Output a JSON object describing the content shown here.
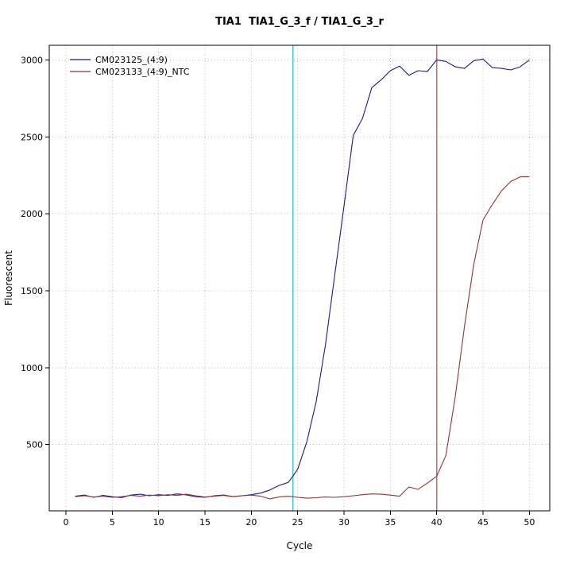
{
  "page": {
    "background": "#ffffff"
  },
  "chart_data": {
    "type": "line",
    "title": "TIA1  TIA1_G_3_f / TIA1_G_3_r",
    "xlabel": "Cycle",
    "ylabel": "Fluorescent",
    "xlim": [
      -1.8,
      52.2
    ],
    "ylim": [
      70,
      3095
    ],
    "x_ticks": [
      0,
      5,
      10,
      15,
      20,
      25,
      30,
      35,
      40,
      45,
      50
    ],
    "y_ticks": [
      500,
      1000,
      1500,
      2000,
      2500,
      3000
    ],
    "grid": true,
    "grid_color": "#bdbdbd",
    "axis_color": "#000000",
    "legend_position": "top-left",
    "series": [
      {
        "name": "CM023125_(4:9)",
        "color": "#1a1a8c",
        "x": [
          1,
          2,
          3,
          4,
          5,
          6,
          7,
          8,
          9,
          10,
          11,
          12,
          13,
          14,
          15,
          16,
          17,
          18,
          19,
          20,
          21,
          22,
          23,
          24,
          25,
          26,
          27,
          28,
          29,
          30,
          31,
          32,
          33,
          34,
          35,
          36,
          37,
          38,
          39,
          40,
          41,
          42,
          43,
          44,
          45,
          46,
          47,
          48,
          49,
          50
        ],
        "values": [
          165,
          172,
          158,
          170,
          162,
          156,
          172,
          178,
          168,
          175,
          170,
          180,
          174,
          162,
          158,
          168,
          173,
          163,
          168,
          175,
          185,
          205,
          235,
          255,
          340,
          520,
          780,
          1150,
          1600,
          2050,
          2510,
          2620,
          2820,
          2870,
          2930,
          2960,
          2900,
          2930,
          2925,
          3000,
          2990,
          2955,
          2945,
          2995,
          3005,
          2950,
          2945,
          2935,
          2955,
          3000
        ]
      },
      {
        "name": "CM023133_(4:9)_NTC",
        "color": "#963232",
        "x": [
          1,
          2,
          3,
          4,
          5,
          6,
          7,
          8,
          9,
          10,
          11,
          12,
          13,
          14,
          15,
          16,
          17,
          18,
          19,
          20,
          21,
          22,
          23,
          24,
          25,
          26,
          27,
          28,
          29,
          30,
          31,
          32,
          33,
          34,
          35,
          36,
          37,
          38,
          39,
          40,
          41,
          42,
          43,
          44,
          45,
          46,
          47,
          48,
          49,
          50
        ],
        "values": [
          162,
          168,
          160,
          165,
          158,
          162,
          170,
          165,
          172,
          168,
          175,
          170,
          178,
          168,
          160,
          165,
          170,
          162,
          168,
          172,
          165,
          148,
          160,
          165,
          158,
          152,
          155,
          160,
          158,
          162,
          168,
          175,
          180,
          178,
          172,
          165,
          225,
          210,
          250,
          295,
          430,
          810,
          1270,
          1670,
          1960,
          2060,
          2150,
          2210,
          2240,
          2240
        ]
      }
    ],
    "vlines": [
      {
        "x": 24.5,
        "color": "#3fc8dc",
        "name": "threshold-cycle-line"
      },
      {
        "x": 40,
        "color": "#cd6a66",
        "name": "cutoff-cycle-line"
      }
    ]
  }
}
